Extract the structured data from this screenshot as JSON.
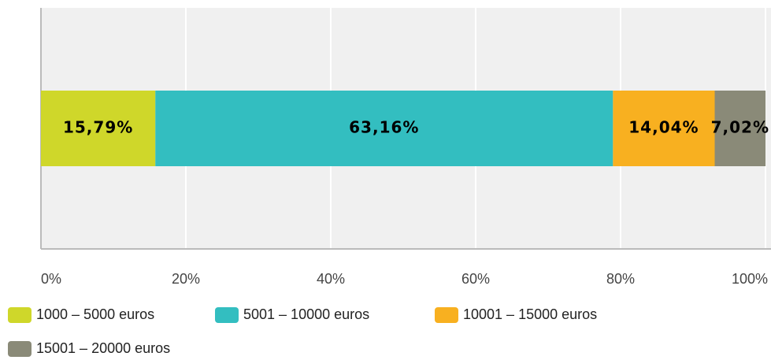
{
  "chart_data": {
    "type": "stacked-bar",
    "orientation": "horizontal",
    "categories": [
      null
    ],
    "series": [
      {
        "name": "1000 – 5000 euros",
        "color": "#cfd72a",
        "values": [
          15.79
        ],
        "value_labels": [
          "15,79%"
        ]
      },
      {
        "name": "5001 – 10000 euros",
        "color": "#33bec0",
        "values": [
          63.16
        ],
        "value_labels": [
          "63,16%"
        ]
      },
      {
        "name": "10001 – 15000 euros",
        "color": "#f8b020",
        "values": [
          14.04
        ],
        "value_labels": [
          "14,04%"
        ]
      },
      {
        "name": "15001 – 20000 euros",
        "color": "#8a8a78",
        "values": [
          7.02
        ],
        "value_labels": [
          "7,02%"
        ]
      }
    ],
    "xlim": [
      0,
      100
    ],
    "xticks": [
      {
        "value": 0,
        "label": "0%"
      },
      {
        "value": 20,
        "label": "20%"
      },
      {
        "value": 40,
        "label": "40%"
      },
      {
        "value": 60,
        "label": "60%"
      },
      {
        "value": 80,
        "label": "80%"
      },
      {
        "value": 100,
        "label": "100%"
      }
    ],
    "grid": true,
    "legend": "bottom"
  }
}
